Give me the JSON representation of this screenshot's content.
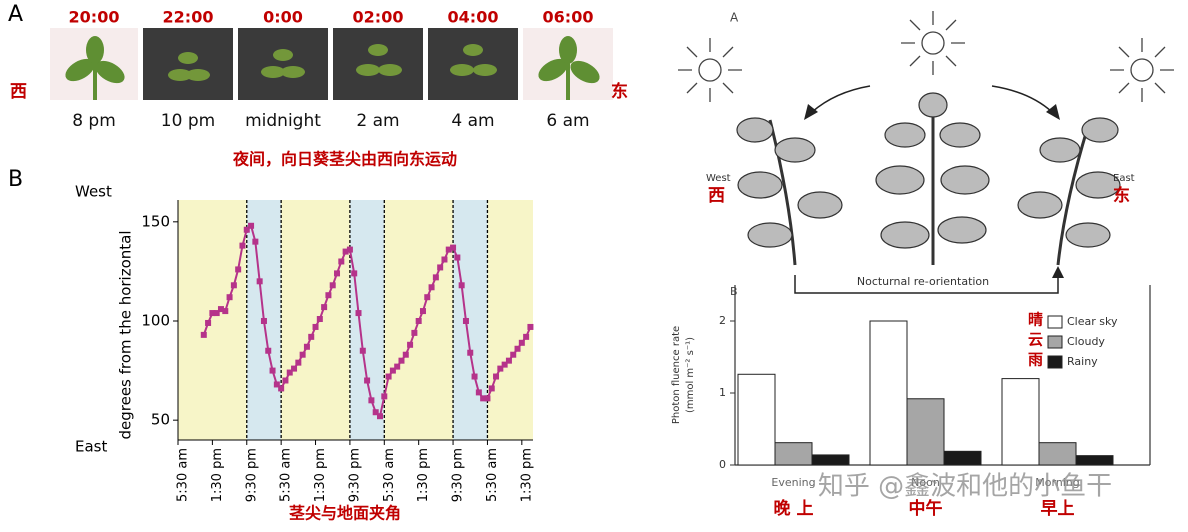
{
  "panel_a": {
    "label": "A",
    "times": [
      "20:00",
      "22:00",
      "0:00",
      "02:00",
      "04:00",
      "06:00"
    ],
    "captions": [
      "8 pm",
      "10 pm",
      "midnight",
      "2 am",
      "4 am",
      "6 am"
    ],
    "west": "西",
    "east": "东",
    "caption": "夜间，向日葵茎尖由西向东运动"
  },
  "panel_b_label": "B",
  "right": {
    "label_a": "A",
    "west": "West",
    "west_cn": "西",
    "east": "East",
    "east_cn": "东",
    "reorientation": "Nocturnal re-orientation",
    "label_b": "B"
  },
  "watermark": "知乎 @鑫波和他的小鱼干",
  "chart_data": [
    {
      "type": "line",
      "y_label": "degrees from the horizontal",
      "x_label": "茎尖与地面夹角",
      "top_label": "West",
      "bottom_label": "East",
      "color": "#b5338a",
      "day_color": "#f7f5c8",
      "night_color": "#d6e8ef",
      "night": [
        [
          16,
          24
        ],
        [
          40,
          48
        ],
        [
          64,
          72
        ]
      ],
      "x": [
        6,
        7,
        8,
        9,
        10,
        11,
        12,
        13,
        14,
        15,
        16,
        17,
        18,
        19,
        20,
        21,
        22,
        23,
        24,
        25,
        26,
        27,
        28,
        29,
        30,
        31,
        32,
        33,
        34,
        35,
        36,
        37,
        38,
        39,
        40,
        41,
        42,
        43,
        44,
        45,
        46,
        47,
        48,
        49,
        50,
        51,
        52,
        53,
        54,
        55,
        56,
        57,
        58,
        59,
        60,
        61,
        62,
        63,
        64,
        65,
        66,
        67,
        68,
        69,
        70,
        71,
        72,
        73,
        74,
        75,
        76,
        77,
        78,
        79,
        80,
        81,
        82
      ],
      "values": [
        93,
        99,
        104,
        104,
        106,
        105,
        112,
        118,
        126,
        138,
        146,
        148,
        140,
        120,
        100,
        85,
        75,
        68,
        66,
        70,
        74,
        76,
        79,
        83,
        87,
        92,
        97,
        101,
        107,
        113,
        118,
        124,
        130,
        135,
        136,
        124,
        104,
        85,
        70,
        60,
        54,
        52,
        62,
        72,
        75,
        77,
        80,
        83,
        88,
        94,
        100,
        105,
        112,
        117,
        122,
        127,
        131,
        136,
        137,
        132,
        118,
        100,
        84,
        72,
        64,
        61,
        61,
        66,
        72,
        76,
        78,
        80,
        83,
        86,
        89,
        92,
        97
      ],
      "xlim": [
        0,
        82.6
      ],
      "ylim": [
        40,
        161
      ],
      "xticks": [
        {
          "value": 0,
          "label": "5:30 am"
        },
        {
          "value": 8,
          "label": "1:30 pm"
        },
        {
          "value": 16,
          "label": "9:30 pm"
        },
        {
          "value": 24,
          "label": "5:30 am"
        },
        {
          "value": 32,
          "label": "1:30 pm"
        },
        {
          "value": 40,
          "label": "9:30 pm"
        },
        {
          "value": 48,
          "label": "5:30 am"
        },
        {
          "value": 56,
          "label": "1:30 pm"
        },
        {
          "value": 64,
          "label": "9:30 pm"
        },
        {
          "value": 72,
          "label": "5:30 am"
        },
        {
          "value": 80,
          "label": "1:30 pm"
        }
      ],
      "yticks": [
        50,
        100,
        150
      ]
    },
    {
      "type": "bar",
      "y_label": [
        "Photon fluence rate",
        "(mmol m⁻² s⁻¹)"
      ],
      "categories": [
        "Evening",
        "Noon",
        "Morning"
      ],
      "categories_cn": [
        "晚 上",
        "中午",
        "早上"
      ],
      "series": [
        {
          "name": "Clear sky",
          "color": "#ffffff",
          "values": [
            1.26,
            2.0,
            1.2
          ]
        },
        {
          "name": "Cloudy",
          "color": "#a6a6a6",
          "values": [
            0.31,
            0.92,
            0.31
          ]
        },
        {
          "name": "Rainy",
          "color": "#1a1a1a",
          "values": [
            0.14,
            0.19,
            0.13
          ]
        }
      ],
      "legend_cn": [
        "晴",
        "云",
        "雨"
      ],
      "ylim": [
        0,
        2.5
      ],
      "yticks": [
        0,
        1,
        2
      ]
    }
  ]
}
